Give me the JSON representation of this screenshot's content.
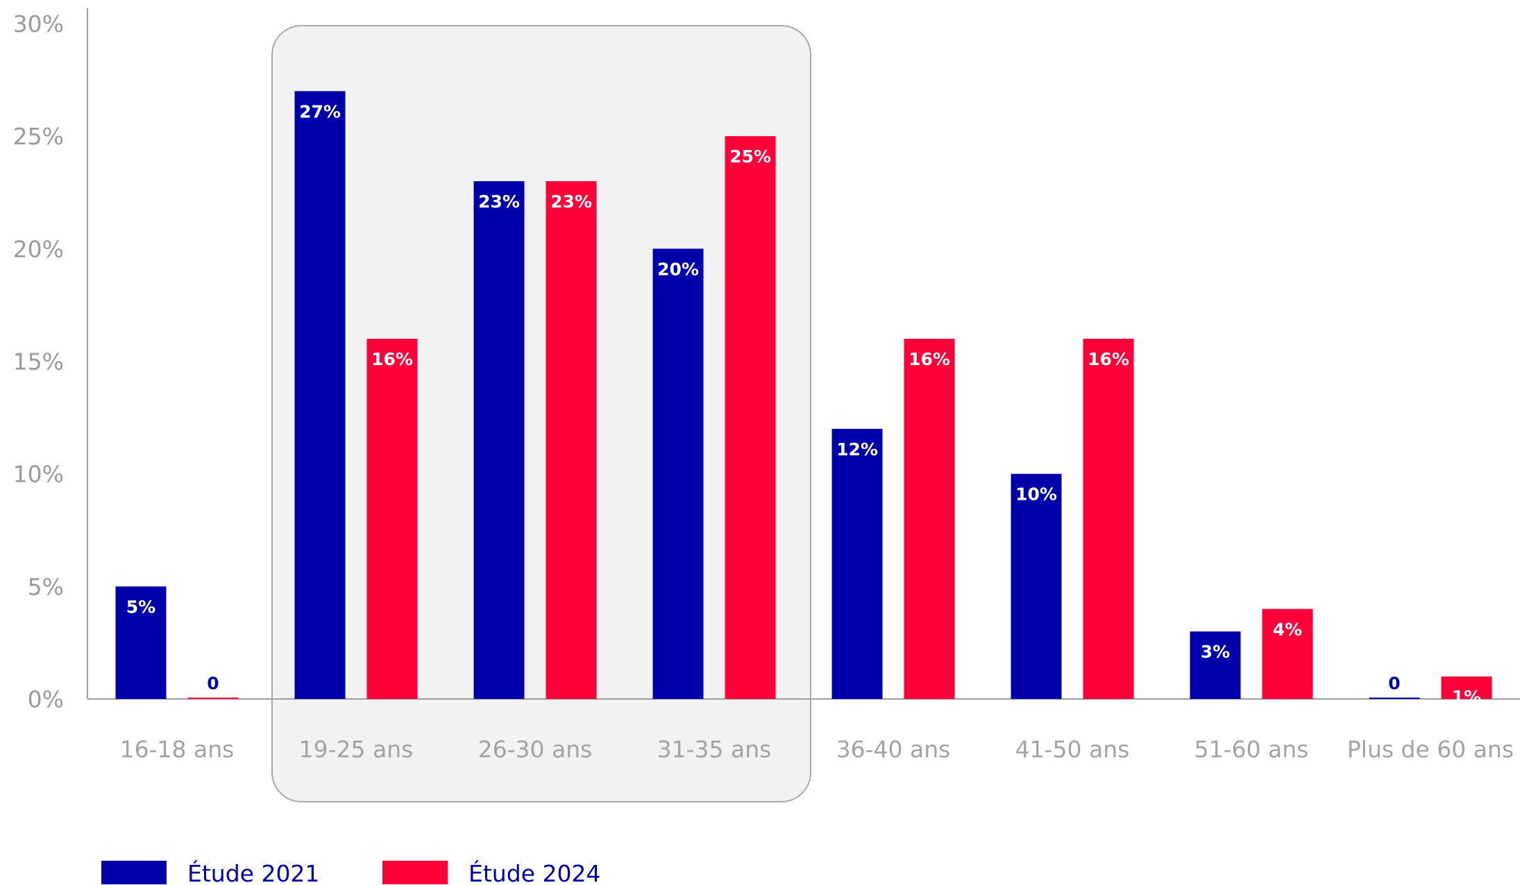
{
  "chart_data": {
    "type": "bar",
    "title": "",
    "xlabel": "",
    "ylabel": "",
    "ylim": [
      0,
      30
    ],
    "yticks": [
      "0%",
      "5%",
      "10%",
      "15%",
      "20%",
      "25%",
      "30%"
    ],
    "grid": false,
    "legend_position": "bottom-left",
    "categories": [
      "16-18 ans",
      "19-25 ans",
      "26-30 ans",
      "31-35 ans",
      "36-40 ans",
      "41-50 ans",
      "51-60 ans",
      "Plus de 60 ans"
    ],
    "highlight_categories": [
      "19-25 ans",
      "26-30 ans",
      "31-35 ans"
    ],
    "series": [
      {
        "name": "Étude 2021",
        "color": "#0000aa",
        "values": [
          5,
          27,
          23,
          20,
          12,
          10,
          3,
          0
        ],
        "labels": [
          "5%",
          "27%",
          "23%",
          "20%",
          "12%",
          "10%",
          "3%",
          "0"
        ]
      },
      {
        "name": "Étude 2024",
        "color": "#ff0038",
        "values": [
          0,
          16,
          23,
          25,
          16,
          16,
          4,
          1
        ],
        "labels": [
          "0",
          "16%",
          "23%",
          "25%",
          "16%",
          "16%",
          "4%",
          "1%"
        ]
      }
    ]
  }
}
